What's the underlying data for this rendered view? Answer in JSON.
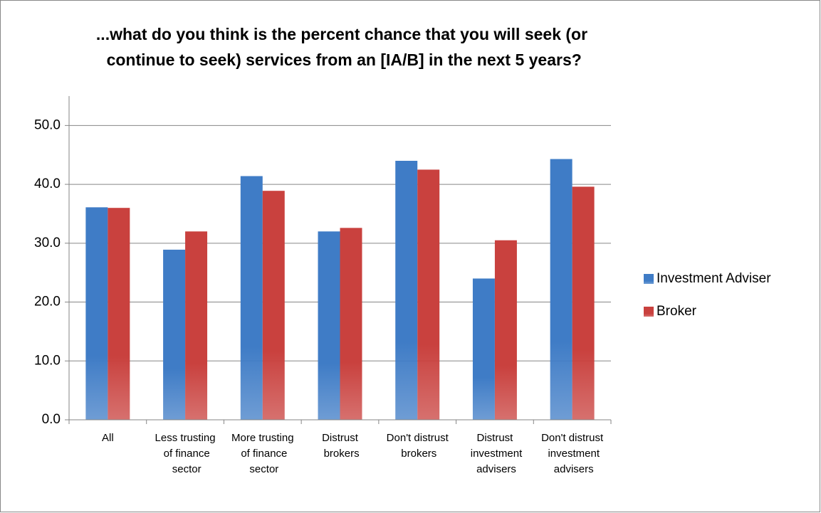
{
  "chart_data": {
    "type": "bar",
    "title": "...what do you think is the percent chance that you will seek (or continue to seek) services from an [IA/B] in the next 5 years?",
    "categories": [
      "All",
      "Less trusting of finance sector",
      "More trusting of finance sector",
      "Distrust brokers",
      "Don't distrust brokers",
      "Distrust investment advisers",
      "Don't distrust investment advisers"
    ],
    "series": [
      {
        "name": "Investment Adviser",
        "color": "#3f7cc6",
        "values": [
          36.1,
          28.9,
          41.4,
          32.0,
          44.0,
          24.0,
          44.3
        ]
      },
      {
        "name": "Broker",
        "color": "#c9413e",
        "values": [
          36.0,
          32.0,
          38.9,
          32.6,
          42.5,
          30.5,
          39.6
        ]
      }
    ],
    "ylim": [
      0,
      55
    ],
    "yticks": [
      {
        "value": 0,
        "label": "0.0"
      },
      {
        "value": 10,
        "label": "10.0"
      },
      {
        "value": 20,
        "label": "20.0"
      },
      {
        "value": 30,
        "label": "30.0"
      },
      {
        "value": 40,
        "label": "40.0"
      },
      {
        "value": 50,
        "label": "50.0"
      }
    ],
    "grid": true,
    "legend": "right"
  }
}
